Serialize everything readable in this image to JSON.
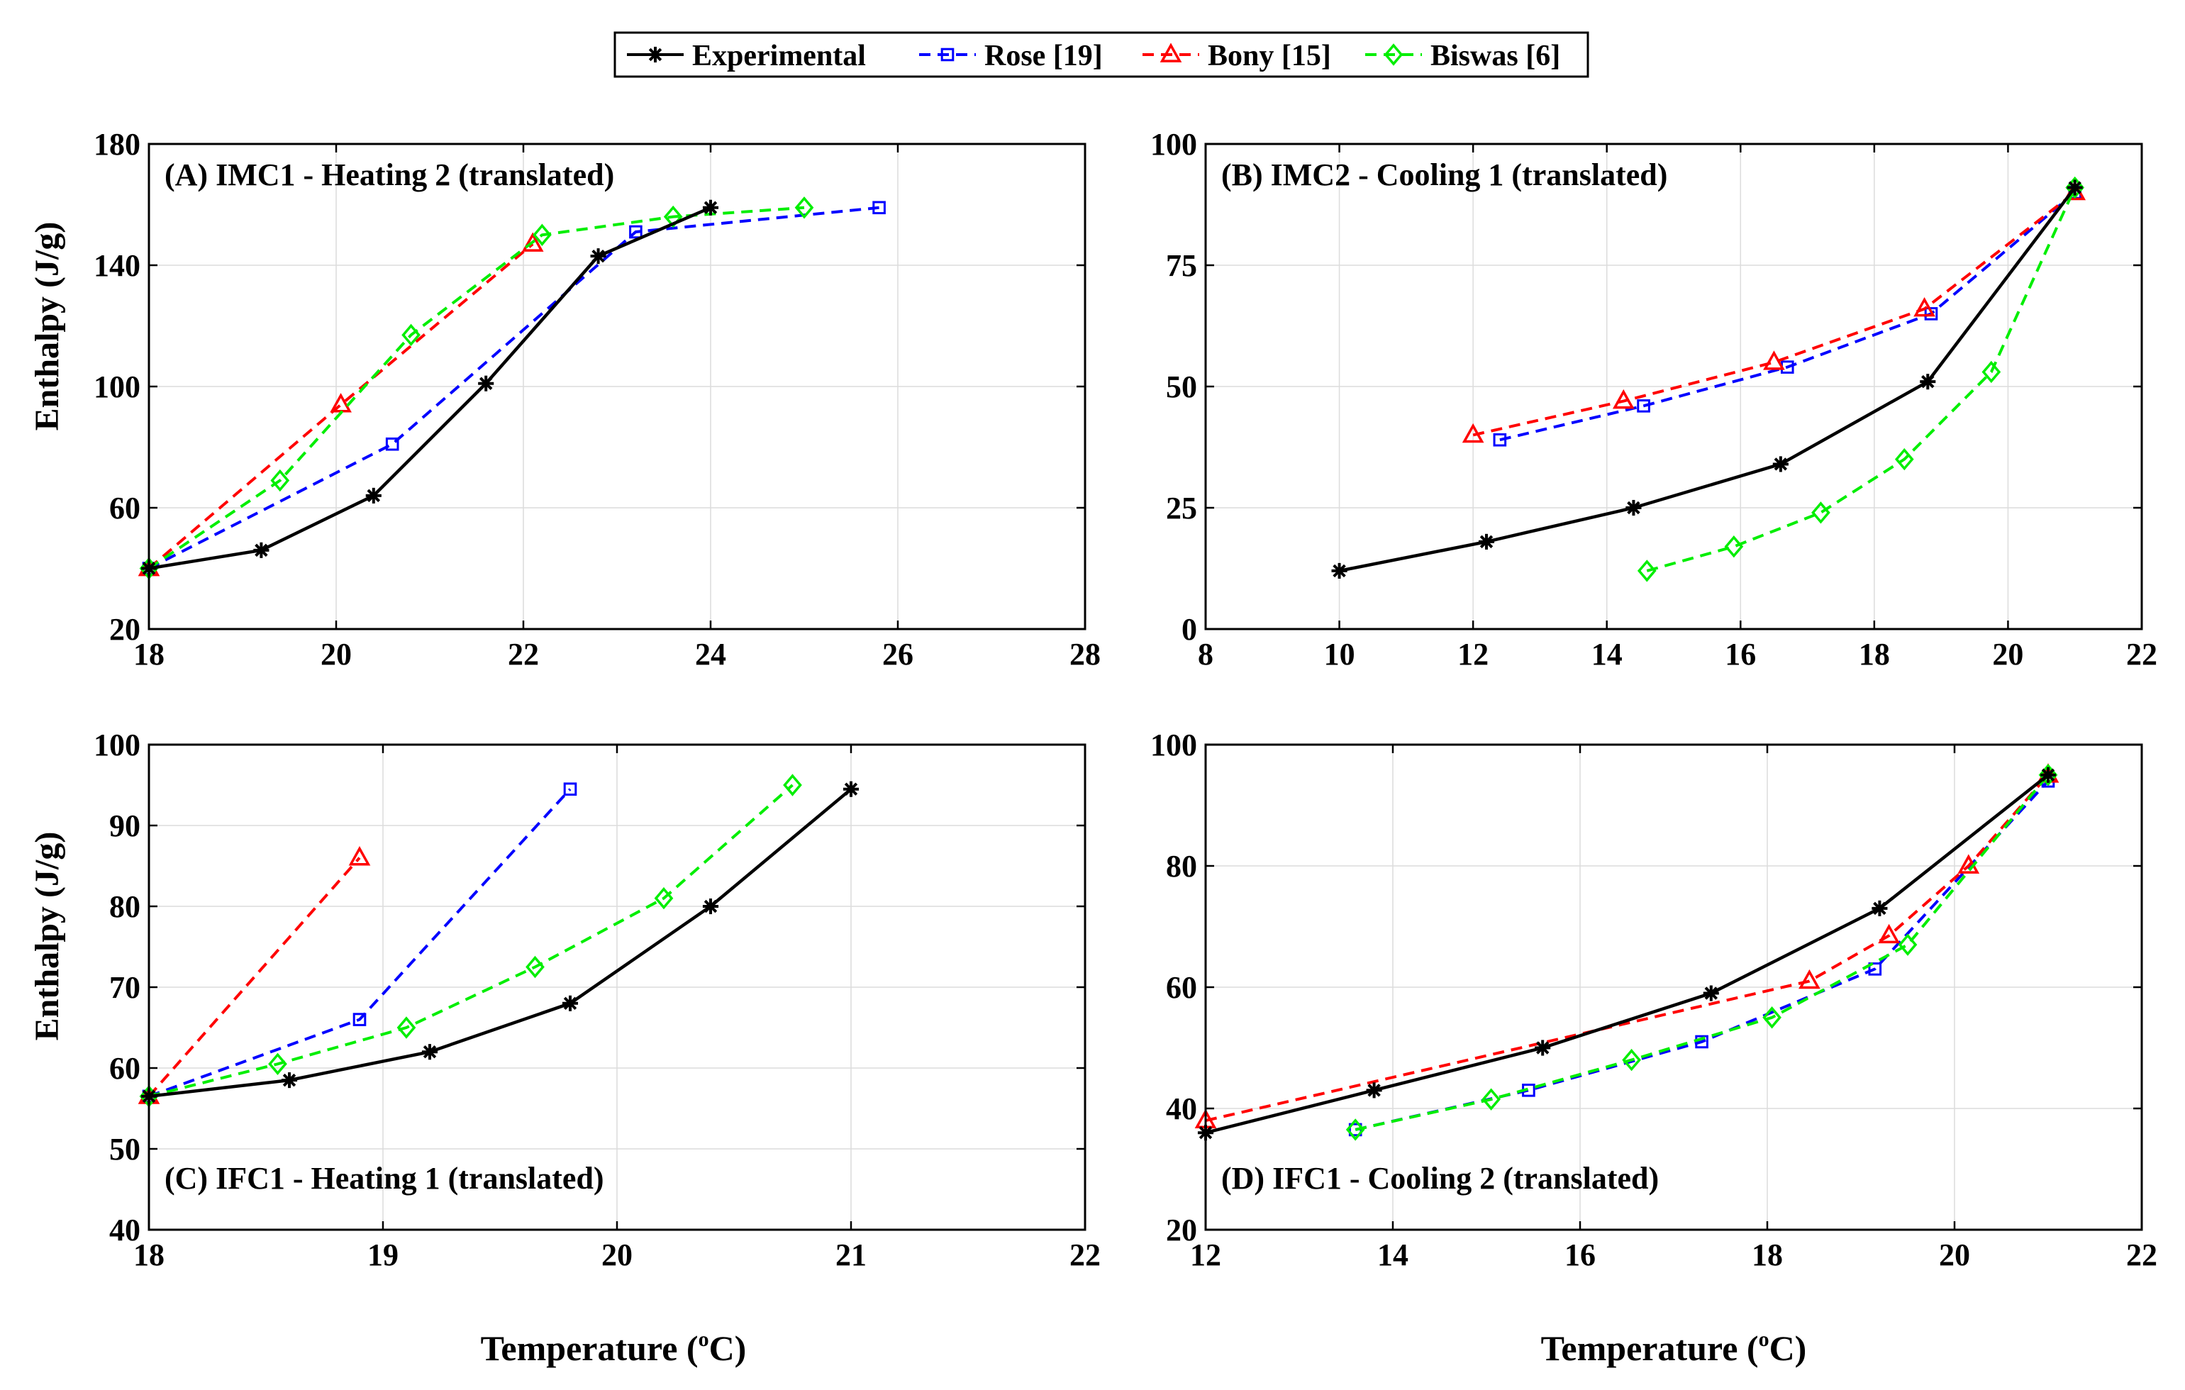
{
  "figure": {
    "legend": [
      {
        "label": "Experimental",
        "color": "#000000",
        "marker": "star",
        "dashed": false
      },
      {
        "label": "Rose [19]",
        "color": "#0000ff",
        "marker": "square",
        "dashed": true
      },
      {
        "label": "Bony [15]",
        "color": "#ff0000",
        "marker": "triangle",
        "dashed": true
      },
      {
        "label": "Biswas [6]",
        "color": "#00ee00",
        "marker": "diamond",
        "dashed": true
      }
    ],
    "ylabel": "Enthalpy (J/g)",
    "xlabel_prefix": "Temperature (",
    "xlabel_sup": "o",
    "xlabel_suffix": "C)"
  },
  "chart_data": [
    {
      "type": "line",
      "title": "(A) IMC1 - Heating 2 (translated)",
      "xlabel": "Temperature (oC)",
      "ylabel": "Enthalpy (J/g)",
      "xlim": [
        18,
        28
      ],
      "ylim": [
        20,
        180
      ],
      "xticks": [
        18,
        20,
        22,
        24,
        26,
        28
      ],
      "yticks": [
        20,
        60,
        100,
        140,
        180
      ],
      "grid": true,
      "series": [
        {
          "name": "Experimental",
          "x": [
            18,
            19.2,
            20.4,
            21.6,
            22.8,
            24.0
          ],
          "y": [
            40,
            46,
            64,
            101,
            143,
            159
          ]
        },
        {
          "name": "Rose [19]",
          "x": [
            18,
            20.6,
            23.2,
            25.8
          ],
          "y": [
            40,
            81,
            151,
            159
          ]
        },
        {
          "name": "Bony [15]",
          "x": [
            18,
            20.05,
            22.1
          ],
          "y": [
            40,
            94,
            147
          ]
        },
        {
          "name": "Biswas [6]",
          "x": [
            18,
            19.4,
            20.8,
            22.2,
            23.6,
            25.0
          ],
          "y": [
            40,
            69,
            117,
            150,
            156,
            159
          ]
        }
      ]
    },
    {
      "type": "line",
      "title": "(B) IMC2 - Cooling 1 (translated)",
      "xlabel": "Temperature (oC)",
      "ylabel": "Enthalpy (J/g)",
      "xlim": [
        8,
        22
      ],
      "ylim": [
        0,
        100
      ],
      "xticks": [
        8,
        10,
        12,
        14,
        16,
        18,
        20,
        22
      ],
      "yticks": [
        0,
        25,
        50,
        75,
        100
      ],
      "grid": true,
      "series": [
        {
          "name": "Experimental",
          "x": [
            10,
            12.2,
            14.4,
            16.6,
            18.8,
            21.0
          ],
          "y": [
            12,
            18,
            25,
            34,
            51,
            91
          ]
        },
        {
          "name": "Rose [19]",
          "x": [
            12.4,
            14.55,
            16.7,
            18.85,
            21.0
          ],
          "y": [
            39,
            46,
            54,
            65,
            90
          ]
        },
        {
          "name": "Bony [15]",
          "x": [
            12.0,
            14.25,
            16.5,
            18.75,
            21.0
          ],
          "y": [
            40,
            47,
            55,
            66,
            90
          ]
        },
        {
          "name": "Biswas [6]",
          "x": [
            14.6,
            15.9,
            17.2,
            18.45,
            19.75,
            21.0
          ],
          "y": [
            12,
            17,
            24,
            35,
            53,
            91
          ]
        }
      ]
    },
    {
      "type": "line",
      "title": "(C) IFC1 - Heating 1 (translated)",
      "xlabel": "Temperature (oC)",
      "ylabel": "Enthalpy (J/g)",
      "xlim": [
        18,
        22
      ],
      "ylim": [
        40,
        100
      ],
      "xticks": [
        18,
        19,
        20,
        21,
        22
      ],
      "yticks": [
        40,
        50,
        60,
        70,
        80,
        90,
        100
      ],
      "grid": true,
      "series": [
        {
          "name": "Experimental",
          "x": [
            18,
            18.6,
            19.2,
            19.8,
            20.4,
            21.0
          ],
          "y": [
            56.5,
            58.5,
            62,
            68,
            80,
            94.5
          ]
        },
        {
          "name": "Rose [19]",
          "x": [
            18,
            18.9,
            19.8
          ],
          "y": [
            56.5,
            66,
            94.5
          ]
        },
        {
          "name": "Bony [15]",
          "x": [
            18,
            18.9
          ],
          "y": [
            56.5,
            86
          ]
        },
        {
          "name": "Biswas [6]",
          "x": [
            18,
            18.55,
            19.1,
            19.65,
            20.2,
            20.75
          ],
          "y": [
            56.5,
            60.5,
            65,
            72.5,
            81,
            95
          ]
        }
      ]
    },
    {
      "type": "line",
      "title": "(D) IFC1 - Cooling 2 (translated)",
      "xlabel": "Temperature (oC)",
      "ylabel": "Enthalpy (J/g)",
      "xlim": [
        12,
        22
      ],
      "ylim": [
        20,
        100
      ],
      "xticks": [
        12,
        14,
        16,
        18,
        20,
        22
      ],
      "yticks": [
        20,
        40,
        60,
        80,
        100
      ],
      "grid": true,
      "series": [
        {
          "name": "Experimental",
          "x": [
            12,
            13.8,
            15.6,
            17.4,
            19.2,
            21.0
          ],
          "y": [
            36,
            43,
            50,
            59,
            73,
            95
          ]
        },
        {
          "name": "Rose [19]",
          "x": [
            13.6,
            15.45,
            17.3,
            19.15,
            21.0
          ],
          "y": [
            36.5,
            43,
            51,
            63,
            94
          ]
        },
        {
          "name": "Bony [15]",
          "x": [
            12,
            18.45,
            19.3,
            20.15,
            21.0
          ],
          "y": [
            38,
            61,
            68.5,
            80,
            95
          ]
        },
        {
          "name": "Biswas [6]",
          "x": [
            13.6,
            15.05,
            16.55,
            18.05,
            19.5,
            21.0
          ],
          "y": [
            36.5,
            41.5,
            48,
            55,
            67,
            95
          ]
        }
      ]
    }
  ]
}
